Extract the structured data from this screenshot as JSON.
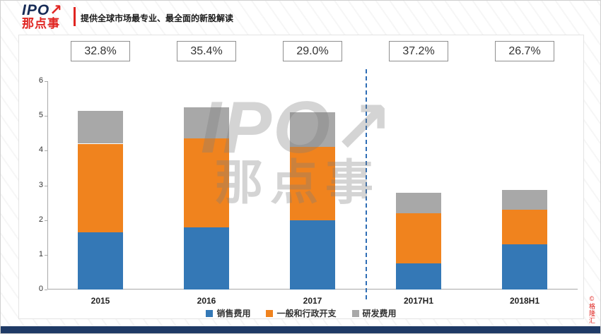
{
  "header": {
    "logo_line1": "IPO",
    "logo_arrow": "↗",
    "logo_line2": "那点事",
    "tagline": "提供全球市场最专业、最全面的新股解读"
  },
  "watermark": {
    "line1": "IPO↗",
    "line2": "那点事"
  },
  "stamp": "©格隆汇",
  "colors": {
    "brand_red": "#E02521",
    "logo_navy": "#162B56",
    "footer_navy": "#1F3A66",
    "separator_blue": "#2E6DB5",
    "axis_gray": "#A9A9A9"
  },
  "chart_data": {
    "type": "bar",
    "stacked": true,
    "title": "",
    "xlabel": "",
    "ylabel": "",
    "categories": [
      "2015",
      "2016",
      "2017",
      "2017H1",
      "2018H1"
    ],
    "series": [
      {
        "name": "销售费用",
        "color": "#3478B6",
        "values": [
          1.65,
          1.8,
          2.0,
          0.75,
          1.3
        ]
      },
      {
        "name": "一般和行政开支",
        "color": "#F0831E",
        "values": [
          2.55,
          2.55,
          2.1,
          1.45,
          1.0
        ]
      },
      {
        "name": "研发费用",
        "color": "#A8A8A8",
        "values": [
          0.95,
          0.9,
          1.0,
          0.58,
          0.57
        ]
      }
    ],
    "percent_labels": [
      "32.8%",
      "35.4%",
      "29.0%",
      "37.2%",
      "26.7%"
    ],
    "ylim": [
      0,
      6
    ],
    "yticks": [
      0,
      1,
      2,
      3,
      4,
      5,
      6
    ],
    "grid": false,
    "legend_position": "bottom",
    "separator_after_index": 2
  }
}
